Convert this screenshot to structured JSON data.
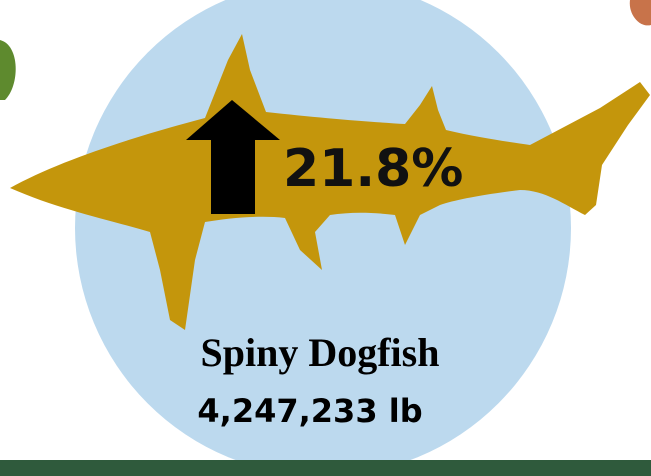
{
  "change": "21.8%",
  "species": "Spiny Dogfish",
  "weight": "4,247,233 lb"
}
